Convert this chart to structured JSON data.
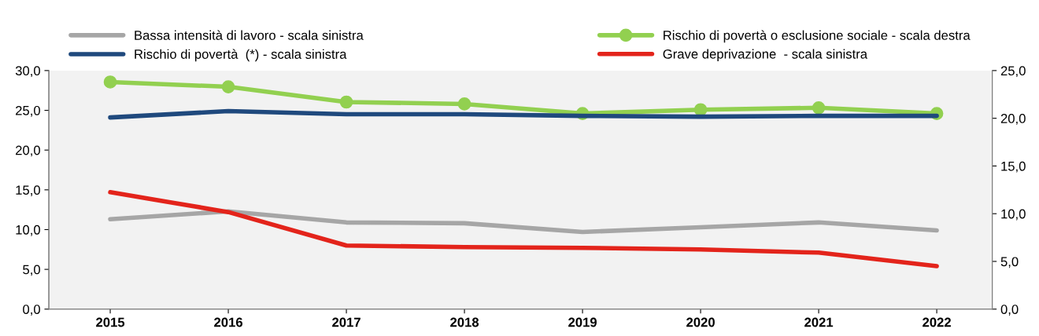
{
  "chart_data": {
    "type": "line",
    "categories": [
      "2015",
      "2016",
      "2017",
      "2018",
      "2019",
      "2020",
      "2021",
      "2022"
    ],
    "series": [
      {
        "name": "Bassa intensità di lavoro - scala sinistra",
        "color": "#a6a6a6",
        "values": [
          11.3,
          12.3,
          10.9,
          10.8,
          9.7,
          10.3,
          10.9,
          9.9
        ]
      },
      {
        "name": "Rischio di povertà  (*) - scala sinistra",
        "color": "#1f497d",
        "values": [
          24.1,
          24.9,
          24.5,
          24.5,
          24.3,
          24.2,
          24.3,
          24.3
        ]
      },
      {
        "name": "Rischio di povertà o esclusione sociale - scala destra",
        "color": "#92d050",
        "axis": "y2",
        "marker": "circle",
        "values": [
          23.8,
          23.3,
          21.7,
          21.5,
          20.5,
          20.9,
          21.1,
          20.5
        ]
      },
      {
        "name": "Grave deprivazione  - scala sinistra",
        "color": "#e3241b",
        "values": [
          14.7,
          12.2,
          8.0,
          7.8,
          7.7,
          7.5,
          7.1,
          5.4
        ]
      }
    ],
    "ylim": [
      0,
      30
    ],
    "yticks": [
      {
        "value": 0,
        "label": "0,0"
      },
      {
        "value": 5,
        "label": "5,0"
      },
      {
        "value": 10,
        "label": "10,0"
      },
      {
        "value": 15,
        "label": "15,0"
      },
      {
        "value": 20,
        "label": "20,0"
      },
      {
        "value": 25,
        "label": "25,0"
      },
      {
        "value": 30,
        "label": "30,0"
      }
    ],
    "y2lim": [
      0,
      25
    ],
    "y2ticks": [
      {
        "value": 0,
        "label": "0,0"
      },
      {
        "value": 5,
        "label": "5,0"
      },
      {
        "value": 10,
        "label": "10,0"
      },
      {
        "value": 15,
        "label": "15,0"
      },
      {
        "value": 20,
        "label": "20,0"
      },
      {
        "value": 25,
        "label": "25,0"
      }
    ],
    "legend": "top",
    "grid": false
  }
}
